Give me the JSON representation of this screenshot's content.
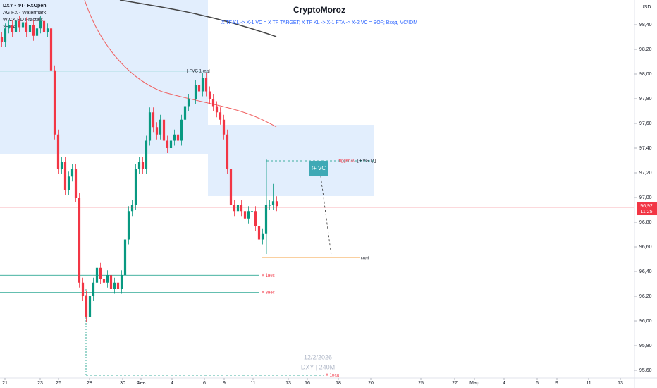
{
  "chart_data": {
    "type": "candlestick",
    "title": "CryptoMoroz",
    "subtitle": "X TF KL -> X-1 VC = X TF TARGET; X TF KL -> X-1 FTA -> X-2 VC = SOF; Вход: VC/IDM",
    "indicators": [
      "DXY · 4ч · FXOpen",
      "AG FX - Watermark",
      "WICK.ED Fractals",
      "2EMA"
    ],
    "currency": "USD",
    "watermark": [
      "12/2/2026",
      "DXY | 240M"
    ],
    "annotations": [
      "[-FVG 1нед]",
      "[-FVG 1д]",
      "trigger 4ч",
      "f+ VC",
      "conf",
      "Х 1нед"
    ],
    "colors": {
      "up": "#089981",
      "down": "#f23645"
    },
    "open": [
      98.3,
      98.26,
      98.37,
      98.4,
      98.34,
      98.43,
      98.38,
      98.42,
      98.34,
      98.4,
      98.31,
      98.37,
      98.43,
      98.34,
      98.37,
      98.03,
      97.51,
      97.23,
      97.29,
      97.06,
      97.17,
      97.23,
      97.0,
      96.31,
      96.2,
      96.03,
      96.2,
      96.31,
      96.43,
      96.34,
      96.31,
      96.37,
      96.26,
      96.31,
      96.26,
      96.37,
      96.66,
      96.89,
      96.94,
      97.23,
      97.29,
      97.23,
      97.46,
      97.69,
      97.57,
      97.51,
      97.63,
      97.46,
      97.4,
      97.46,
      97.51,
      97.46,
      97.63,
      97.74,
      97.8,
      97.8,
      97.91,
      97.86,
      97.97,
      97.86,
      97.8,
      97.74,
      97.69,
      97.63,
      97.51,
      97.23,
      96.94,
      96.89,
      96.94,
      96.89,
      96.83,
      96.89,
      96.89,
      96.77,
      96.66,
      96.71,
      96.94,
      96.94,
      96.97
    ],
    "high": [
      98.34,
      98.41,
      98.44,
      98.44,
      98.47,
      98.47,
      98.46,
      98.46,
      98.44,
      98.44,
      98.41,
      98.47,
      98.47,
      98.41,
      98.41,
      98.07,
      97.55,
      97.33,
      97.33,
      97.21,
      97.27,
      97.27,
      97.04,
      96.35,
      96.24,
      96.24,
      96.35,
      96.47,
      96.47,
      96.38,
      96.41,
      96.41,
      96.35,
      96.35,
      96.41,
      96.7,
      96.93,
      96.98,
      97.27,
      97.33,
      97.33,
      97.5,
      97.73,
      97.73,
      97.61,
      97.67,
      97.67,
      97.5,
      97.5,
      97.55,
      97.55,
      97.67,
      97.78,
      97.84,
      97.84,
      97.95,
      97.95,
      98.01,
      98.01,
      97.9,
      97.84,
      97.78,
      97.73,
      97.67,
      97.55,
      97.27,
      96.98,
      96.98,
      96.98,
      96.93,
      96.93,
      96.93,
      96.93,
      96.81,
      96.75,
      97.31,
      96.98,
      97.11,
      97.01
    ],
    "low": [
      98.22,
      98.22,
      98.33,
      98.3,
      98.3,
      98.34,
      98.34,
      98.3,
      98.3,
      98.27,
      98.27,
      98.33,
      98.3,
      98.3,
      97.99,
      97.47,
      97.19,
      97.19,
      97.02,
      97.02,
      97.13,
      96.96,
      96.27,
      96.16,
      95.99,
      95.99,
      96.16,
      96.27,
      96.3,
      96.27,
      96.27,
      96.22,
      96.22,
      96.22,
      96.22,
      96.33,
      96.62,
      96.85,
      96.9,
      97.19,
      97.19,
      97.19,
      97.42,
      97.53,
      97.47,
      97.47,
      97.42,
      97.36,
      97.36,
      97.42,
      97.42,
      97.42,
      97.59,
      97.7,
      97.76,
      97.76,
      97.82,
      97.82,
      97.82,
      97.76,
      97.7,
      97.65,
      97.59,
      97.47,
      97.19,
      96.9,
      96.85,
      96.85,
      96.85,
      96.79,
      96.79,
      96.85,
      96.73,
      96.62,
      96.62,
      96.62,
      96.9,
      96.9,
      96.89
    ],
    "close": [
      98.26,
      98.37,
      98.4,
      98.34,
      98.43,
      98.38,
      98.42,
      98.34,
      98.4,
      98.31,
      98.37,
      98.43,
      98.34,
      98.37,
      98.03,
      97.51,
      97.23,
      97.29,
      97.06,
      97.17,
      97.23,
      97.0,
      96.31,
      96.2,
      96.03,
      96.2,
      96.31,
      96.43,
      96.34,
      96.31,
      96.37,
      96.26,
      96.31,
      96.26,
      96.37,
      96.66,
      96.89,
      96.94,
      97.23,
      97.29,
      97.23,
      97.46,
      97.69,
      97.57,
      97.51,
      97.63,
      97.46,
      97.4,
      97.46,
      97.51,
      97.46,
      97.63,
      97.74,
      97.8,
      97.8,
      97.91,
      97.86,
      97.97,
      97.86,
      97.8,
      97.74,
      97.69,
      97.63,
      97.51,
      97.23,
      96.94,
      96.89,
      96.94,
      96.89,
      96.83,
      96.89,
      96.89,
      96.77,
      96.66,
      96.71,
      96.94,
      96.94,
      96.97,
      96.93
    ],
    "last_price": {
      "value": 96.92,
      "label": "96,92",
      "time": "11:25",
      "color": "#f23645"
    },
    "levels": [
      {
        "label": "Х 1нес",
        "value": 96.37,
        "color": "#089981"
      },
      {
        "label": "Х 3нес",
        "value": 96.23,
        "color": "#089981"
      }
    ],
    "xlim": [
      0,
      186.4
    ],
    "xticks": [
      {
        "value": 1.4,
        "label": "21"
      },
      {
        "value": 11.4,
        "label": "23"
      },
      {
        "value": 16.6,
        "label": "26"
      },
      {
        "value": 25.4,
        "label": "28"
      },
      {
        "value": 34.8,
        "label": "30"
      },
      {
        "value": 40,
        "label": "Фев"
      },
      {
        "value": 48.8,
        "label": "4"
      },
      {
        "value": 58,
        "label": "6"
      },
      {
        "value": 63.6,
        "label": "9"
      },
      {
        "value": 71.8,
        "label": "11"
      },
      {
        "value": 81.8,
        "label": "13"
      },
      {
        "value": 87.2,
        "label": "16"
      },
      {
        "value": 96,
        "label": "18"
      },
      {
        "value": 105.2,
        "label": "20"
      },
      {
        "value": 119.4,
        "label": "25"
      },
      {
        "value": 129,
        "label": "27"
      },
      {
        "value": 134.6,
        "label": "Мар"
      },
      {
        "value": 143,
        "label": "4"
      },
      {
        "value": 152.4,
        "label": "6"
      },
      {
        "value": 158,
        "label": "9"
      },
      {
        "value": 167,
        "label": "11"
      },
      {
        "value": 176,
        "label": "13"
      }
    ],
    "ylim": [
      95.543,
      98.6
    ],
    "yticks": [
      {
        "value": 98.4,
        "label": "98,40"
      },
      {
        "value": 98.2,
        "label": "98,20"
      },
      {
        "value": 98.0,
        "label": "98,00"
      },
      {
        "value": 97.8,
        "label": "97,80"
      },
      {
        "value": 97.6,
        "label": "97,60"
      },
      {
        "value": 97.4,
        "label": "97,40"
      },
      {
        "value": 97.2,
        "label": "97,20"
      },
      {
        "value": 97.0,
        "label": "97,00"
      },
      {
        "value": 96.8,
        "label": "96,80"
      },
      {
        "value": 96.6,
        "label": "96,60"
      },
      {
        "value": 96.4,
        "label": "96,40"
      },
      {
        "value": 96.2,
        "label": "96,20"
      },
      {
        "value": 96.0,
        "label": "96,00"
      },
      {
        "value": 95.8,
        "label": "95,80"
      },
      {
        "value": 95.6,
        "label": "95,60"
      }
    ]
  }
}
